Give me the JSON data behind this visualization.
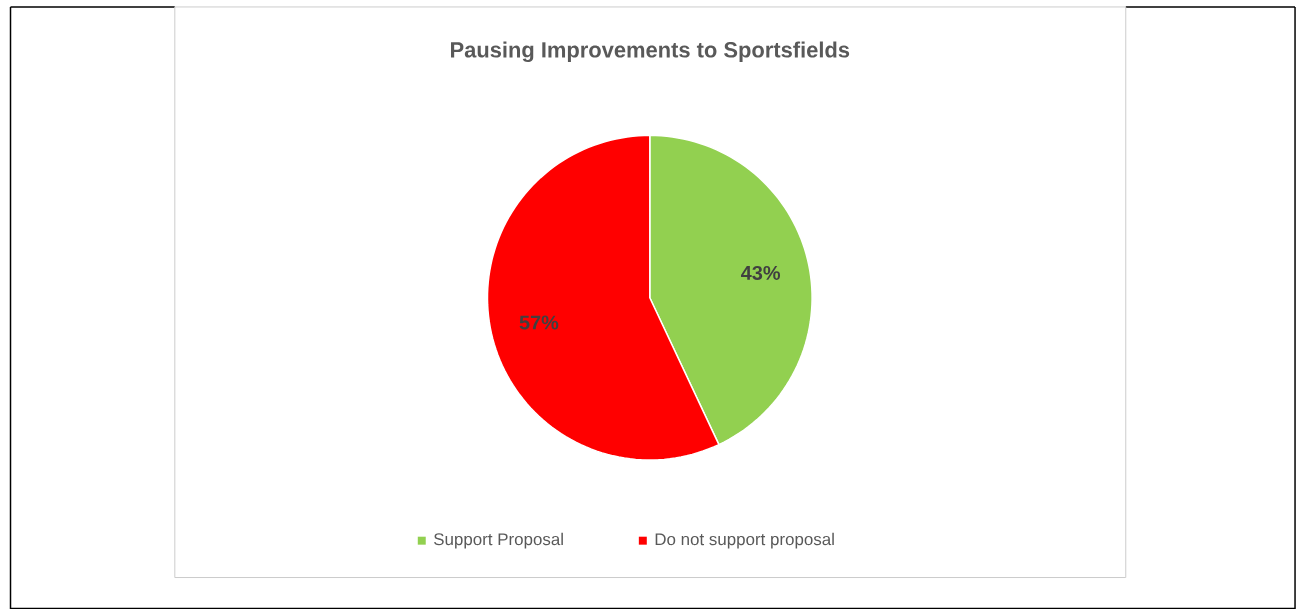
{
  "chart_data": {
    "type": "pie",
    "title": "Pausing Improvements to Sportsfields",
    "categories": [
      "Support Proposal",
      "Do not support proposal"
    ],
    "values": [
      43,
      57
    ],
    "colors": [
      "#92d050",
      "#ff0000"
    ],
    "value_labels": [
      "43%",
      "57%"
    ],
    "legend": "bottom"
  }
}
